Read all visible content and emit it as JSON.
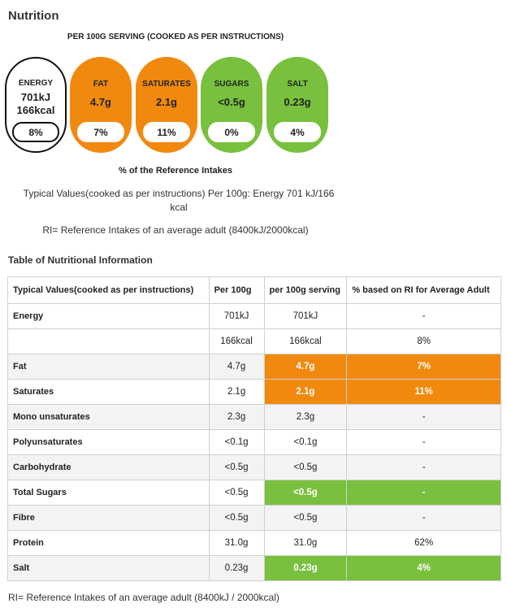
{
  "title": "Nutrition",
  "serving_header": "PER 100G SERVING (COOKED AS PER INSTRUCTIONS)",
  "lozenges": [
    {
      "name": "ENERGY",
      "value": "701kJ",
      "value2": "166kcal",
      "percent": "8%",
      "color": "#ffffff"
    },
    {
      "name": "FAT",
      "value": "4.7g",
      "percent": "7%",
      "color": "#f0890e"
    },
    {
      "name": "SATURATES",
      "value": "2.1g",
      "percent": "11%",
      "color": "#f0890e"
    },
    {
      "name": "SUGARS",
      "value": "<0.5g",
      "percent": "0%",
      "color": "#78c03e"
    },
    {
      "name": "SALT",
      "value": "0.23g",
      "percent": "4%",
      "color": "#78c03e"
    }
  ],
  "ri_caption": "% of the Reference Intakes",
  "typical_values": "Typical Values(cooked as per instructions) Per 100g: Energy 701 kJ/166 kcal",
  "ri_note": "RI= Reference Intakes of an average adult (8400kJ/2000kcal)",
  "table_title": "Table of Nutritional Information",
  "table": {
    "headers": [
      "Typical Values(cooked as per instructions)",
      "Per 100g",
      "per 100g serving",
      "% based on RI for Average Adult"
    ],
    "rows": [
      {
        "label": "Energy",
        "per100": "701kJ",
        "serving": "701kJ",
        "ri": "-"
      },
      {
        "label": "",
        "per100": "166kcal",
        "serving": "166kcal",
        "ri": "8%"
      },
      {
        "label": "Fat",
        "per100": "4.7g",
        "serving": "4.7g",
        "ri": "7%"
      },
      {
        "label": "Saturates",
        "per100": "2.1g",
        "serving": "2.1g",
        "ri": "11%"
      },
      {
        "label": "Mono unsaturates",
        "per100": "2.3g",
        "serving": "2.3g",
        "ri": "-"
      },
      {
        "label": "Polyunsaturates",
        "per100": "<0.1g",
        "serving": "<0.1g",
        "ri": "-"
      },
      {
        "label": "Carbohydrate",
        "per100": "<0.5g",
        "serving": "<0.5g",
        "ri": "-"
      },
      {
        "label": "Total Sugars",
        "per100": "<0.5g",
        "serving": "<0.5g",
        "ri": "-"
      },
      {
        "label": "Fibre",
        "per100": "<0.5g",
        "serving": "<0.5g",
        "ri": "-"
      },
      {
        "label": "Protein",
        "per100": "31.0g",
        "serving": "31.0g",
        "ri": "62%"
      },
      {
        "label": "Salt",
        "per100": "0.23g",
        "serving": "0.23g",
        "ri": "4%"
      }
    ]
  },
  "footer": "RI= Reference Intakes of an average adult (8400kJ / 2000kcal)"
}
